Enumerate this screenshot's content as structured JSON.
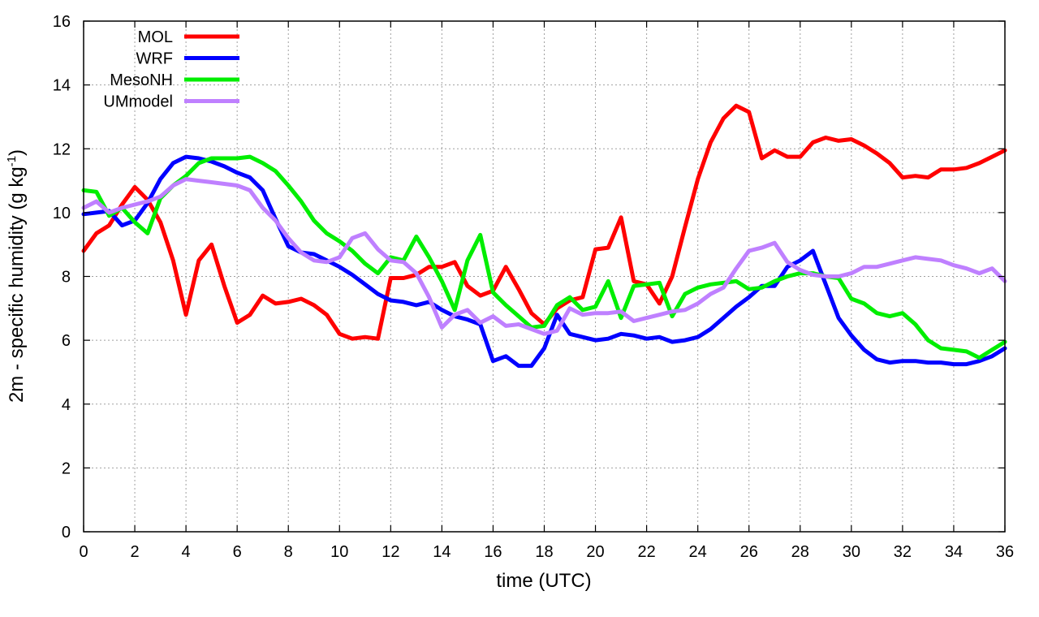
{
  "chart_data": {
    "type": "line",
    "xlabel": "time (UTC)",
    "ylabel_main": "2m - specific humidity (g kg",
    "ylabel_sup": "-1",
    "ylabel_close": ")",
    "xlim": [
      0,
      36
    ],
    "ylim": [
      0,
      16
    ],
    "xticks": [
      0,
      2,
      4,
      6,
      8,
      10,
      12,
      14,
      16,
      18,
      20,
      22,
      24,
      26,
      28,
      30,
      32,
      34,
      36
    ],
    "yticks": [
      0,
      2,
      4,
      6,
      8,
      10,
      12,
      14,
      16
    ],
    "grid": true,
    "legend": "top-left",
    "series": [
      {
        "name": "MOL",
        "color": "#ff0000",
        "x": [
          0,
          0.5,
          1,
          1.5,
          2,
          2.5,
          3,
          3.5,
          4,
          4.5,
          5,
          5.5,
          6,
          6.5,
          7,
          7.5,
          8,
          8.5,
          9,
          9.5,
          10,
          10.5,
          11,
          11.5,
          12,
          12.5,
          13,
          13.5,
          14,
          14.5,
          15,
          15.5,
          16,
          16.5,
          17,
          17.5,
          18,
          18.5,
          19,
          19.5,
          20,
          20.5,
          21,
          21.5,
          22,
          22.5,
          23,
          23.5,
          24,
          24.5,
          25,
          25.5,
          26,
          26.5,
          27,
          27.5,
          28,
          28.5,
          29,
          29.5,
          30,
          30.5,
          31,
          31.5,
          32,
          32.5,
          33,
          33.5,
          34,
          34.5,
          35,
          35.5,
          36
        ],
        "y": [
          8.8,
          9.35,
          9.6,
          10.25,
          10.8,
          10.4,
          9.7,
          8.5,
          6.8,
          8.5,
          9.0,
          7.7,
          6.55,
          6.8,
          7.4,
          7.15,
          7.2,
          7.3,
          7.1,
          6.8,
          6.2,
          6.05,
          6.1,
          6.05,
          7.95,
          7.95,
          8.05,
          8.3,
          8.3,
          8.45,
          7.7,
          7.4,
          7.55,
          8.3,
          7.6,
          6.85,
          6.5,
          7.0,
          7.25,
          7.35,
          8.85,
          8.9,
          9.85,
          7.85,
          7.75,
          7.15,
          8.0,
          9.55,
          11.05,
          12.2,
          12.95,
          13.35,
          13.15,
          11.7,
          11.95,
          11.75,
          11.75,
          12.2,
          12.35,
          12.25,
          12.3,
          12.1,
          11.85,
          11.55,
          11.1,
          11.15,
          11.1,
          11.35,
          11.35,
          11.4,
          11.55,
          11.75,
          11.95
        ]
      },
      {
        "name": "WRF",
        "color": "#0000ff",
        "x": [
          0,
          0.5,
          1,
          1.5,
          2,
          2.5,
          3,
          3.5,
          4,
          4.5,
          5,
          5.5,
          6,
          6.5,
          7,
          7.5,
          8,
          8.5,
          9,
          9.5,
          10,
          10.5,
          11,
          11.5,
          12,
          12.5,
          13,
          13.5,
          14,
          14.5,
          15,
          15.5,
          16,
          16.5,
          17,
          17.5,
          18,
          18.5,
          19,
          19.5,
          20,
          20.5,
          21,
          21.5,
          22,
          22.5,
          23,
          23.5,
          24,
          24.5,
          25,
          25.5,
          26,
          26.5,
          27,
          27.5,
          28,
          28.5,
          29,
          29.5,
          30,
          30.5,
          31,
          31.5,
          32,
          32.5,
          33,
          33.5,
          34,
          34.5,
          35,
          35.5,
          36
        ],
        "y": [
          9.95,
          10.0,
          10.05,
          9.6,
          9.75,
          10.3,
          11.05,
          11.55,
          11.75,
          11.7,
          11.6,
          11.45,
          11.25,
          11.1,
          10.7,
          9.8,
          8.95,
          8.75,
          8.7,
          8.5,
          8.3,
          8.05,
          7.75,
          7.45,
          7.25,
          7.2,
          7.1,
          7.2,
          6.95,
          6.75,
          6.65,
          6.5,
          5.35,
          5.5,
          5.2,
          5.2,
          5.75,
          6.8,
          6.2,
          6.1,
          6.0,
          6.05,
          6.2,
          6.15,
          6.05,
          6.1,
          5.95,
          6.0,
          6.1,
          6.35,
          6.7,
          7.05,
          7.35,
          7.7,
          7.7,
          8.3,
          8.5,
          8.8,
          7.75,
          6.7,
          6.15,
          5.7,
          5.4,
          5.3,
          5.35,
          5.35,
          5.3,
          5.3,
          5.25,
          5.25,
          5.35,
          5.5,
          5.75
        ]
      },
      {
        "name": "MesoNH",
        "color": "#00ee00",
        "x": [
          0,
          0.5,
          1,
          1.5,
          2,
          2.5,
          3,
          3.5,
          4,
          4.5,
          5,
          5.5,
          6,
          6.5,
          7,
          7.5,
          8,
          8.5,
          9,
          9.5,
          10,
          10.5,
          11,
          11.5,
          12,
          12.5,
          13,
          13.5,
          14,
          14.5,
          15,
          15.5,
          16,
          16.5,
          17,
          17.5,
          18,
          18.5,
          19,
          19.5,
          20,
          20.5,
          21,
          21.5,
          22,
          22.5,
          23,
          23.5,
          24,
          24.5,
          25,
          25.5,
          26,
          26.5,
          27,
          27.5,
          28,
          28.5,
          29,
          29.5,
          30,
          30.5,
          31,
          31.5,
          32,
          32.5,
          33,
          33.5,
          34,
          34.5,
          35,
          35.5,
          36
        ],
        "y": [
          10.7,
          10.65,
          9.9,
          10.15,
          9.7,
          9.35,
          10.45,
          10.85,
          11.15,
          11.55,
          11.7,
          11.7,
          11.7,
          11.75,
          11.55,
          11.3,
          10.85,
          10.35,
          9.75,
          9.35,
          9.1,
          8.8,
          8.4,
          8.1,
          8.6,
          8.5,
          9.25,
          8.6,
          7.85,
          6.95,
          8.5,
          9.3,
          7.5,
          7.1,
          6.75,
          6.4,
          6.45,
          7.1,
          7.35,
          6.95,
          7.05,
          7.85,
          6.7,
          7.7,
          7.75,
          7.8,
          6.75,
          7.45,
          7.65,
          7.75,
          7.8,
          7.85,
          7.6,
          7.65,
          7.85,
          8.0,
          8.1,
          8.1,
          8.0,
          7.95,
          7.3,
          7.15,
          6.85,
          6.75,
          6.85,
          6.5,
          6.0,
          5.75,
          5.7,
          5.65,
          5.45,
          5.7,
          5.95
        ]
      },
      {
        "name": "UMmodel",
        "color": "#bf80ff",
        "x": [
          0,
          0.5,
          1,
          1.5,
          2,
          2.5,
          3,
          3.5,
          4,
          4.5,
          5,
          5.5,
          6,
          6.5,
          7,
          7.5,
          8,
          8.5,
          9,
          9.5,
          10,
          10.5,
          11,
          11.5,
          12,
          12.5,
          13,
          13.5,
          14,
          14.5,
          15,
          15.5,
          16,
          16.5,
          17,
          17.5,
          18,
          18.5,
          19,
          19.5,
          20,
          20.5,
          21,
          21.5,
          22,
          22.5,
          23,
          23.5,
          24,
          24.5,
          25,
          25.5,
          26,
          26.5,
          27,
          27.5,
          28,
          28.5,
          29,
          29.5,
          30,
          30.5,
          31,
          31.5,
          32,
          32.5,
          33,
          33.5,
          34,
          34.5,
          35,
          35.5,
          36
        ],
        "y": [
          10.15,
          10.35,
          10.0,
          10.15,
          10.25,
          10.35,
          10.5,
          10.85,
          11.05,
          11.0,
          10.95,
          10.9,
          10.85,
          10.7,
          10.15,
          9.75,
          9.2,
          8.75,
          8.5,
          8.45,
          8.6,
          9.2,
          9.35,
          8.85,
          8.5,
          8.45,
          8.1,
          7.35,
          6.4,
          6.8,
          6.95,
          6.55,
          6.75,
          6.45,
          6.5,
          6.35,
          6.2,
          6.3,
          7.0,
          6.8,
          6.85,
          6.85,
          6.9,
          6.6,
          6.7,
          6.8,
          6.9,
          6.95,
          7.15,
          7.45,
          7.65,
          8.25,
          8.8,
          8.9,
          9.05,
          8.45,
          8.2,
          8.05,
          8.0,
          8.0,
          8.1,
          8.3,
          8.3,
          8.4,
          8.5,
          8.6,
          8.55,
          8.5,
          8.35,
          8.25,
          8.1,
          8.25,
          7.85
        ]
      }
    ]
  }
}
